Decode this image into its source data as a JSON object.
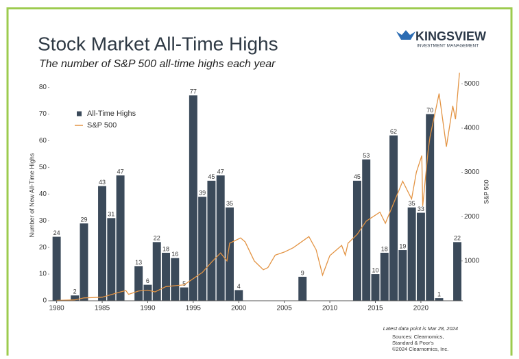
{
  "chart_data": {
    "type": "bar",
    "title": "Stock Market All-Time Highs",
    "subtitle": "The number of S&P 500 all-time highs each year",
    "brand": "KINGSVIEW",
    "brand_sub": "INVESTMENT MANAGEMENT",
    "y_label": "Number of New All-Time Highs",
    "y2_label": "S&P 500",
    "note": "Latest data point is Mar 28, 2024",
    "sources": [
      "Sources: Clearnomics,",
      "Standard & Poor's",
      "©2024 Clearnomics, Inc."
    ],
    "legend_corner": "upper left",
    "xlim": [
      1979.2,
      2024.6
    ],
    "xticks": [
      1980,
      1985,
      1990,
      1995,
      2000,
      2005,
      2010,
      2015,
      2020
    ],
    "ylim": [
      0,
      84
    ],
    "yticks": [
      0,
      10,
      20,
      30,
      40,
      50,
      60,
      70,
      80
    ],
    "y2lim": [
      100,
      5160
    ],
    "y2ticks": [
      1000,
      2000,
      3000,
      4000,
      5000
    ],
    "series": [
      {
        "name": "All-Time Highs",
        "color": "#3b4a5a",
        "x": [
          1980,
          1982,
          1983,
          1985,
          1986,
          1987,
          1989,
          1990,
          1991,
          1992,
          1993,
          1994,
          1995,
          1996,
          1997,
          1998,
          1999,
          2000,
          2007,
          2013,
          2014,
          2015,
          2016,
          2017,
          2018,
          2019,
          2020,
          2021,
          2022,
          2024
        ],
        "values": [
          24,
          2,
          29,
          43,
          31,
          47,
          13,
          6,
          22,
          18,
          16,
          5,
          77,
          39,
          45,
          47,
          35,
          4,
          9,
          45,
          53,
          10,
          18,
          62,
          19,
          35,
          33,
          70,
          1,
          22
        ]
      },
      {
        "name": "S&P 500",
        "type": "line",
        "axis": "y2",
        "color": "#e39444",
        "x": [
          1980,
          1982,
          1983,
          1985,
          1986,
          1987,
          1987.6,
          1987.9,
          1989,
          1990,
          1990.8,
          1992,
          1994,
          1995,
          1996,
          1997,
          1998,
          1998.7,
          1999,
          2000.2,
          2000.7,
          2001.7,
          2002.7,
          2003.2,
          2004,
          2005,
          2006,
          2007.7,
          2008.5,
          2009.2,
          2010,
          2011.3,
          2011.7,
          2012,
          2013,
          2014,
          2015.5,
          2016.1,
          2017,
          2018,
          2018.98,
          2019.5,
          2020.1,
          2020.2,
          2020.8,
          2021,
          2022,
          2022.8,
          2023.5,
          2023.8,
          2024.24
        ],
        "values": [
          108,
          120,
          165,
          180,
          240,
          300,
          330,
          245,
          320,
          340,
          300,
          420,
          460,
          600,
          740,
          970,
          1180,
          1000,
          1400,
          1520,
          1430,
          1000,
          800,
          850,
          1130,
          1200,
          1300,
          1550,
          1250,
          680,
          1120,
          1350,
          1130,
          1400,
          1600,
          1900,
          2100,
          1850,
          2300,
          2800,
          2400,
          3000,
          3380,
          2240,
          3500,
          3800,
          4780,
          3580,
          4500,
          4200,
          5250
        ]
      }
    ]
  }
}
